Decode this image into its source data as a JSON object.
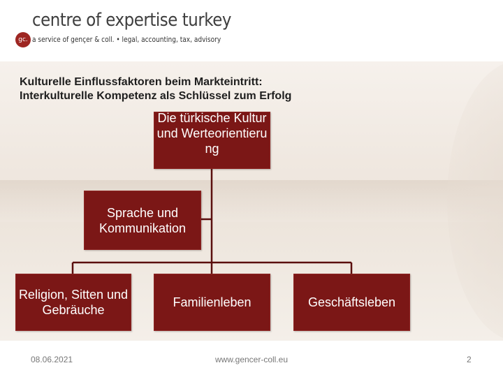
{
  "header": {
    "logo_mark": "gc.",
    "brand_title": "centre of expertise turkey",
    "brand_subtitle": "a service of gençer & coll. • legal, accounting, tax, advisory"
  },
  "slide": {
    "title_line1": "Kulturelle Einflussfaktoren beim Markteintritt:",
    "title_line2": "Interkulturelle Kompetenz als Schlüssel zum Erfolg"
  },
  "diagram": {
    "root": "Die türkische Kultur und Werteorientierung",
    "level1": "Sprache und Kommunikation",
    "children": [
      "Religion, Sitten und Gebräuche",
      "Familienleben",
      "Geschäftsleben"
    ]
  },
  "footer": {
    "date": "08.06.2021",
    "url": "www.gencer-coll.eu",
    "page": "2"
  },
  "colors": {
    "node_fill": "#7b1716",
    "connector": "#5a0f0e",
    "brand": "#9e2622"
  }
}
